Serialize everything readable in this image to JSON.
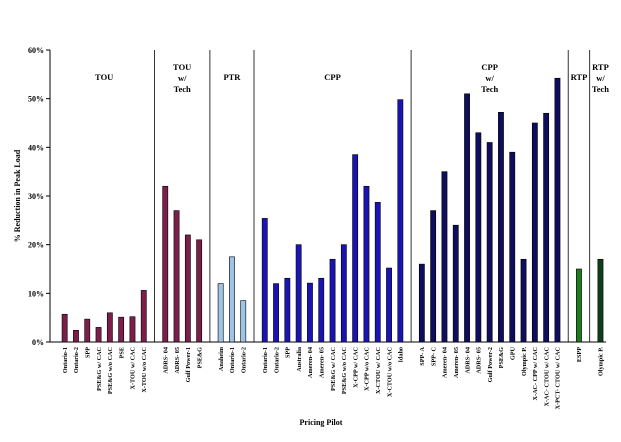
{
  "chart_data": {
    "type": "bar",
    "title": "",
    "xlabel": "Pricing Pilot",
    "ylabel": "% Reduction in Peak Load",
    "ylim": [
      0,
      60
    ],
    "yticks": [
      "0%",
      "10%",
      "20%",
      "30%",
      "40%",
      "50%",
      "60%"
    ],
    "grid": false,
    "legend": "none",
    "groups": [
      {
        "name": "TOU",
        "color": "#7b1f4a",
        "categories": [
          "Ontario-1",
          "Ontario-2",
          "SPP",
          "PSE&G w/ CAC",
          "PSE&G w/o CAC",
          "PSE",
          "X-TOU w/ CAC",
          "X-TOU w/o CAC"
        ],
        "values": [
          5.7,
          2.4,
          4.7,
          3.0,
          6.0,
          5.1,
          5.2,
          10.6
        ]
      },
      {
        "name": "TOU w/ Tech",
        "color": "#7b1f4a",
        "categories": [
          "ADRS- 04",
          "ADRS- 05",
          "Gulf Power-1",
          "PSE&G"
        ],
        "values": [
          32,
          27,
          22,
          21
        ]
      },
      {
        "name": "PTR",
        "color": "#9fc3e6",
        "categories": [
          "Anaheim",
          "Ontario-1",
          "Ontario-2"
        ],
        "values": [
          12,
          17.5,
          8.5
        ]
      },
      {
        "name": "CPP",
        "color": "#1a14b4",
        "categories": [
          "Ontario-1",
          "Ontario-2",
          "SPP",
          "Australia",
          "Ameren- 04",
          "Ameren- 05",
          "PSE&G w/ CAC",
          "PSE&G w/o CAC",
          "X-CPP w/ CAC",
          "X-CPP w/o CAC",
          "X-CTOU w/ CAC",
          "X-CTOU w/o CAC",
          "Idaho"
        ],
        "values": [
          25.4,
          12,
          13.1,
          20,
          12.1,
          13.1,
          17,
          20,
          38.5,
          32,
          28.7,
          15.2,
          49.8
        ]
      },
      {
        "name": "CPP w/ Tech",
        "color": "#0e0e5c",
        "categories": [
          "SPP- A",
          "SPP- C",
          "Ameren- 04",
          "Ameren- 05",
          "ADRS- 04",
          "ADRS- 05",
          "Gulf Power-2",
          "PSE&G",
          "GPU",
          "Olympic P.",
          "X-AC- CPP w/ CAC",
          "X-AC- CTOU w/ CAC",
          "X-PCT- CTOU w/ CAC"
        ],
        "values": [
          16,
          27,
          35,
          24,
          51,
          43,
          41,
          47.2,
          39,
          17,
          45,
          47,
          54.2
        ]
      },
      {
        "name": "RTP",
        "color": "#1d7a1d",
        "categories": [
          "ESPP"
        ],
        "values": [
          15
        ]
      },
      {
        "name": "RTP w/ Tech",
        "color": "#0f3f17",
        "categories": [
          "Olympic P."
        ],
        "values": [
          17
        ]
      }
    ]
  }
}
